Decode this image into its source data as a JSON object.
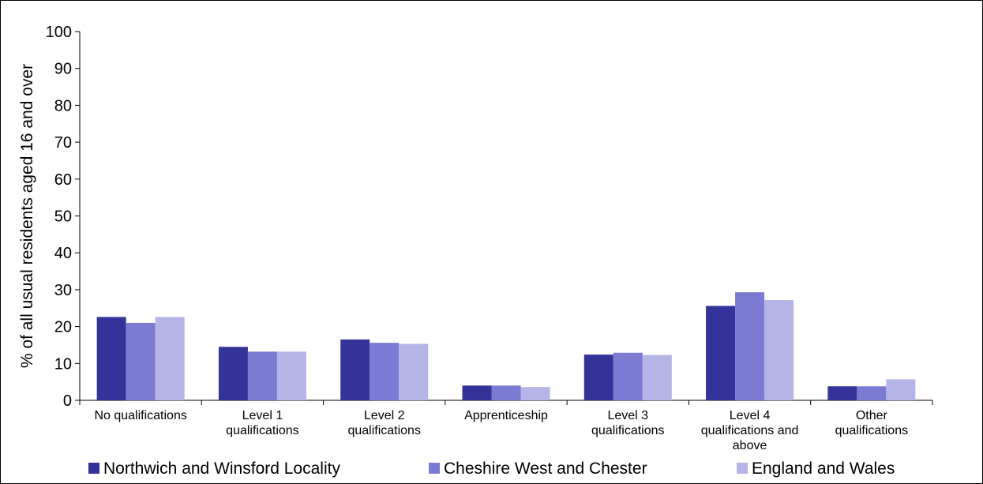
{
  "chart_data": {
    "type": "bar",
    "title": "",
    "xlabel": "",
    "ylabel": "% of all usual residents aged 16 and over",
    "ylim": [
      0,
      100
    ],
    "yticks": [
      0,
      10,
      20,
      30,
      40,
      50,
      60,
      70,
      80,
      90,
      100
    ],
    "grid": false,
    "legend_position": "bottom",
    "categories": [
      "No qualifications",
      "Level 1 qualifications",
      "Level 2 qualifications",
      "Apprenticeship",
      "Level 3 qualifications",
      "Level 4 qualifications and above",
      "Other qualifications"
    ],
    "series": [
      {
        "name": "Northwich and Winsford Locality",
        "color": "#333399",
        "values": [
          22.6,
          14.5,
          16.5,
          4.0,
          12.4,
          25.6,
          3.8
        ]
      },
      {
        "name": "Cheshire West and Chester",
        "color": "#7b7bd3",
        "values": [
          21.0,
          13.2,
          15.6,
          4.0,
          12.9,
          29.3,
          3.8
        ]
      },
      {
        "name": "England and Wales",
        "color": "#b4b4e6",
        "values": [
          22.6,
          13.2,
          15.3,
          3.6,
          12.3,
          27.2,
          5.7
        ]
      }
    ]
  }
}
